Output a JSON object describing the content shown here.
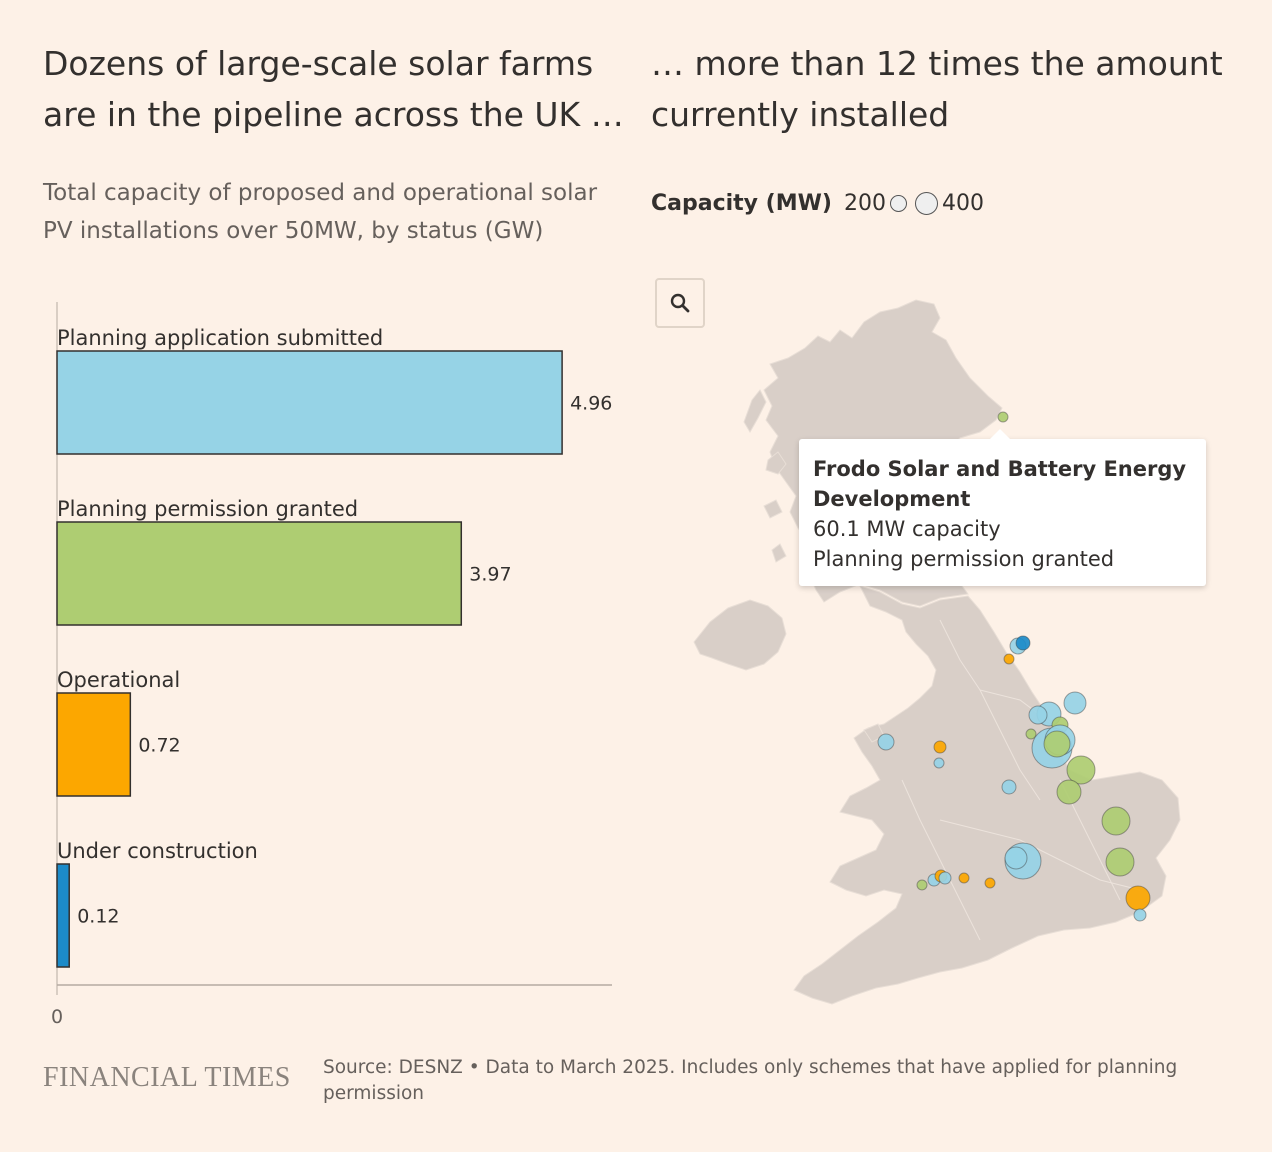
{
  "headline_left": "Dozens of large-scale solar farms are in the pipeline across the UK …",
  "headline_right": "… more than 12 times the amount currently installed",
  "subtitle": "Total capacity of proposed and operational solar PV installations over 50MW, by status (GW)",
  "legend": {
    "label": "Capacity (MW)",
    "small_value": "200",
    "large_value": "400"
  },
  "zoom_icon": "search-icon",
  "tooltip": {
    "name": "Frodo Solar and Battery Energy Development",
    "capacity": "60.1 MW capacity",
    "status": "Planning permission granted"
  },
  "footer": {
    "logo": "FINANCIAL TIMES",
    "source": "Source: DESNZ • Data to March 2025. Includes only schemes that have applied for planning permission"
  },
  "colors": {
    "background": "#fdf1e7",
    "planning_application_submitted": "#96d3e6",
    "planning_permission_granted": "#aecd72",
    "operational": "#fca700",
    "under_construction": "#1c8bc9",
    "land": "#d9cfc8"
  },
  "chart_data": {
    "type": "bar",
    "orientation": "horizontal",
    "title": "Total capacity of proposed and operational solar PV installations over 50MW, by status (GW)",
    "categories": [
      "Planning application submitted",
      "Planning permission granted",
      "Operational",
      "Under construction"
    ],
    "values": [
      4.96,
      3.97,
      0.72,
      0.12
    ],
    "value_labels": [
      "4.96",
      "3.97",
      "0.72",
      "0.12"
    ],
    "colors": [
      "#96d3e6",
      "#aecd72",
      "#fca700",
      "#1c8bc9"
    ],
    "xlim": [
      0,
      5.45
    ],
    "x_tick_labels": [
      "0"
    ],
    "xlabel": "",
    "ylabel": ""
  }
}
